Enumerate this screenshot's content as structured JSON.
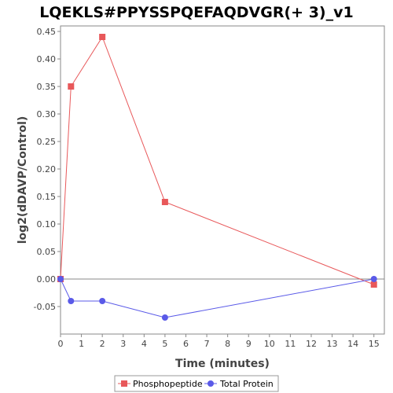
{
  "chart_data": {
    "type": "line",
    "title": "LQEKLS#PPYSSPQEFAQDVGR(+ 3)_v1",
    "xlabel": "Time (minutes)",
    "ylabel": "log2(dDAVP/Control)",
    "xlim": [
      0,
      15.5
    ],
    "ylim": [
      -0.1,
      0.46
    ],
    "x_ticks": [
      0,
      1,
      2,
      3,
      4,
      5,
      6,
      7,
      8,
      9,
      10,
      11,
      12,
      13,
      14,
      15
    ],
    "x_tick_labels": [
      "0",
      "1",
      "2",
      "3",
      "4",
      "5",
      "6",
      "7",
      "8",
      "9",
      "10",
      "11",
      "12",
      "13",
      "14",
      "15"
    ],
    "y_ticks": [
      -0.05,
      0,
      0.05,
      0.1,
      0.15,
      0.2,
      0.25,
      0.3,
      0.35,
      0.4,
      0.45
    ],
    "y_tick_labels": [
      "-0.05",
      "0.00",
      "0.05",
      "0.10",
      "0.15",
      "0.20",
      "0.25",
      "0.30",
      "0.35",
      "0.40",
      "0.45"
    ],
    "legend_position": "bottom",
    "grid": false,
    "series": [
      {
        "name": "Phosphopeptide",
        "color": "#e8585a",
        "marker": "square",
        "x": [
          0,
          0.5,
          2,
          5,
          15
        ],
        "y": [
          0.0,
          0.35,
          0.44,
          0.14,
          -0.01
        ]
      },
      {
        "name": "Total Protein",
        "color": "#5a5ae8",
        "marker": "circle",
        "x": [
          0,
          0.5,
          2,
          5,
          15
        ],
        "y": [
          0.0,
          -0.04,
          -0.04,
          -0.07,
          0.0
        ]
      }
    ]
  }
}
